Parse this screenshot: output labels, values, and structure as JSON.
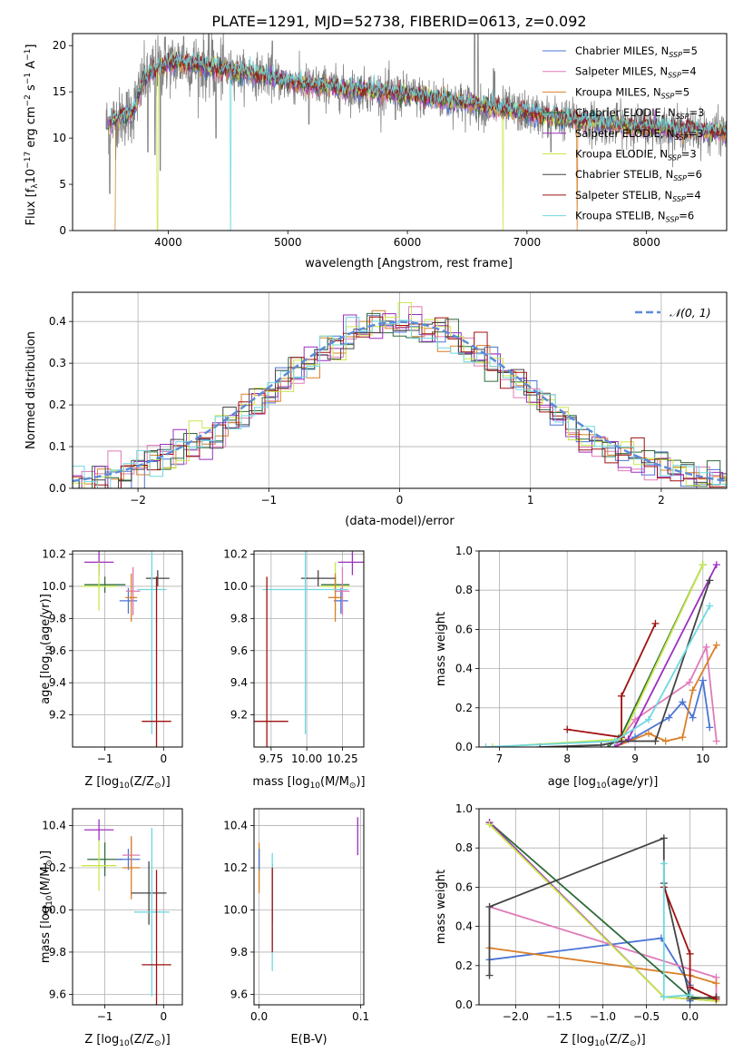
{
  "figure_title": "PLATE=1291, MJD=52738, FIBERID=0613, z=0.092",
  "colors": {
    "Chabrier MILES": "#4a74d6",
    "Salpeter MILES": "#e07ab8",
    "Kroupa MILES": "#d9802a",
    "Chabrier ELODIE": "#2e6b3a",
    "Salpeter ELODIE": "#9b2fbf",
    "Kroupa ELODIE": "#c8e84a",
    "Chabrier STELIB": "#444444",
    "Salpeter STELIB": "#a01010",
    "Kroupa STELIB": "#6fd8e0",
    "data": "#808080",
    "normal": "#5b8ad8"
  },
  "legend_entries": [
    {
      "name": "Chabrier MILES",
      "nssp": "5"
    },
    {
      "name": "Salpeter MILES",
      "nssp": "4"
    },
    {
      "name": "Kroupa MILES",
      "nssp": "5"
    },
    {
      "name": "Chabrier ELODIE",
      "nssp": "3"
    },
    {
      "name": "Salpeter ELODIE",
      "nssp": "3"
    },
    {
      "name": "Kroupa ELODIE",
      "nssp": "3"
    },
    {
      "name": "Chabrier STELIB",
      "nssp": "6"
    },
    {
      "name": "Salpeter STELIB",
      "nssp": "4"
    },
    {
      "name": "Kroupa STELIB",
      "nssp": "6"
    }
  ],
  "chart_data": [
    {
      "id": "spectrum",
      "type": "line",
      "title": "PLATE=1291, MJD=52738, FIBERID=0613, z=0.092",
      "xlabel": "wavelength [Angstrom, rest frame]",
      "ylabel_parts": [
        "Flux [f",
        "λ",
        "10",
        "−17",
        " erg cm",
        "−2",
        " s",
        "−1",
        " A",
        "−1",
        "]"
      ],
      "xlim": [
        3200,
        8670
      ],
      "ylim": [
        0,
        21.3
      ],
      "xticks": [
        4000,
        5000,
        6000,
        7000,
        8000
      ],
      "yticks": [
        0,
        5,
        10,
        15,
        20
      ],
      "legend_loc": "upper right",
      "continuum": [
        [
          3480,
          11.5
        ],
        [
          3600,
          12.2
        ],
        [
          3700,
          12.8
        ],
        [
          3800,
          16.5
        ],
        [
          3900,
          17.5
        ],
        [
          4000,
          18.0
        ],
        [
          4100,
          18.2
        ],
        [
          4200,
          18.0
        ],
        [
          4400,
          17.5
        ],
        [
          4600,
          17.1
        ],
        [
          4800,
          16.8
        ],
        [
          5000,
          16.0
        ],
        [
          5200,
          15.7
        ],
        [
          5500,
          15.3
        ],
        [
          5800,
          15.0
        ],
        [
          6100,
          14.5
        ],
        [
          6400,
          14.0
        ],
        [
          6700,
          13.3
        ],
        [
          7000,
          12.7
        ],
        [
          7300,
          12.1
        ],
        [
          7600,
          11.6
        ],
        [
          7900,
          11.3
        ],
        [
          8200,
          11.0
        ],
        [
          8500,
          10.7
        ],
        [
          8670,
          10.6
        ]
      ],
      "data_spikes": [
        [
          3970,
          20.9
        ],
        [
          4130,
          21.0
        ],
        [
          4370,
          20.6
        ],
        [
          4870,
          20.5
        ],
        [
          6563,
          23.0
        ],
        [
          6590,
          23.0
        ],
        [
          6720,
          17.5
        ],
        [
          6730,
          17.2
        ]
      ],
      "data_dips": [
        [
          3510,
          4.0
        ],
        [
          3830,
          8.5
        ],
        [
          3890,
          8.2
        ],
        [
          3934,
          6.5
        ],
        [
          4400,
          10.0
        ],
        [
          5176,
          11.5
        ],
        [
          5900,
          12.0
        ],
        [
          7200,
          8.5
        ]
      ],
      "model_drops": [
        {
          "model": "Kroupa STELIB",
          "x": 4520
        },
        {
          "model": "Kroupa ELODIE",
          "x": 3910
        },
        {
          "model": "Kroupa ELODIE",
          "x": 6800
        },
        {
          "model": "Kroupa MILES",
          "x": 7420
        },
        {
          "model": "Kroupa MILES",
          "x": 3520
        }
      ]
    },
    {
      "id": "residuals",
      "type": "histogram",
      "xlabel": "(data-model)/error",
      "ylabel": "Normed distribution",
      "xlim": [
        -2.5,
        2.5
      ],
      "ylim": [
        0,
        0.47
      ],
      "xticks": [
        -2,
        -1,
        0,
        1,
        2
      ],
      "yticks": [
        0.0,
        0.1,
        0.2,
        0.3,
        0.4
      ],
      "legend_label": "𝒩(0, 1)",
      "legend_loc": "upper right",
      "bin_width": 0.1
    },
    {
      "id": "age_vs_Z",
      "type": "errorbar",
      "xlabel_parts": [
        "Z [log",
        "10",
        "(Z/Z",
        "⊙",
        ")]"
      ],
      "ylabel_parts": [
        "age  [log",
        "10",
        "(age/yr)]"
      ],
      "xlim": [
        -1.55,
        0.32
      ],
      "ylim": [
        9.0,
        10.22
      ],
      "xticks": [
        -1,
        0
      ],
      "yticks": [
        9.2,
        9.4,
        9.6,
        9.8,
        10.0,
        10.2
      ],
      "points": [
        {
          "model": "Salpeter ELODIE",
          "x": -1.1,
          "xerr": 0.25,
          "y": 10.15,
          "yerr": 0.08
        },
        {
          "model": "Chabrier ELODIE",
          "x": -1.0,
          "xerr": 0.35,
          "y": 10.01,
          "yerr": 0.05
        },
        {
          "model": "Kroupa ELODIE",
          "x": -1.1,
          "xerr": 0.3,
          "y": 10.0,
          "yerr": 0.15
        },
        {
          "model": "Chabrier MILES",
          "x": -0.6,
          "xerr": 0.15,
          "y": 9.91,
          "yerr": 0.08
        },
        {
          "model": "Salpeter MILES",
          "x": -0.52,
          "xerr": 0.12,
          "y": 9.97,
          "yerr": 0.15
        },
        {
          "model": "Kroupa MILES",
          "x": -0.55,
          "xerr": 0.1,
          "y": 9.93,
          "yerr": 0.15
        },
        {
          "model": "Chabrier STELIB",
          "x": -0.1,
          "xerr": 0.2,
          "y": 10.05,
          "yerr": 0.05
        },
        {
          "model": "Kroupa STELIB",
          "x": -0.2,
          "xerr": 0.25,
          "y": 9.98,
          "yerr": 0.9
        },
        {
          "model": "Salpeter STELIB",
          "x": -0.12,
          "xerr": 0.25,
          "y": 9.16,
          "yerr": 0.9
        }
      ]
    },
    {
      "id": "age_vs_mass",
      "type": "errorbar",
      "xlabel_parts": [
        "mass [log",
        "10",
        "(M/M",
        "⊙",
        ")]"
      ],
      "xlim": [
        9.63,
        10.4
      ],
      "ylim": [
        9.0,
        10.22
      ],
      "xticks": [
        9.75,
        10.0,
        10.25
      ],
      "xticklabels": [
        "9.75",
        "10.00",
        "10.25"
      ],
      "yticks": [
        9.2,
        9.4,
        9.6,
        9.8,
        10.0,
        10.2
      ],
      "points": [
        {
          "model": "Salpeter ELODIE",
          "x": 10.32,
          "xerr": 0.1,
          "y": 10.15,
          "yerr": 0.08
        },
        {
          "model": "Chabrier ELODIE",
          "x": 10.2,
          "xerr": 0.1,
          "y": 10.01,
          "yerr": 0.05
        },
        {
          "model": "Kroupa ELODIE",
          "x": 10.2,
          "xerr": 0.1,
          "y": 10.0,
          "yerr": 0.15
        },
        {
          "model": "Chabrier MILES",
          "x": 10.24,
          "xerr": 0.05,
          "y": 9.91,
          "yerr": 0.08
        },
        {
          "model": "Salpeter MILES",
          "x": 10.25,
          "xerr": 0.05,
          "y": 9.97,
          "yerr": 0.15
        },
        {
          "model": "Kroupa MILES",
          "x": 10.2,
          "xerr": 0.05,
          "y": 9.93,
          "yerr": 0.15
        },
        {
          "model": "Chabrier STELIB",
          "x": 10.08,
          "xerr": 0.12,
          "y": 10.05,
          "yerr": 0.05
        },
        {
          "model": "Kroupa STELIB",
          "x": 9.99,
          "xerr": 0.3,
          "y": 9.98,
          "yerr": 0.9
        },
        {
          "model": "Salpeter STELIB",
          "x": 9.72,
          "xerr": 0.15,
          "y": 9.16,
          "yerr": 0.9
        }
      ]
    },
    {
      "id": "weight_vs_age",
      "type": "line",
      "xlabel_parts": [
        "age  [log",
        "10",
        "(age/yr)]"
      ],
      "ylabel": "mass weight",
      "xlim": [
        6.7,
        10.35
      ],
      "ylim": [
        0,
        1.0
      ],
      "xticks": [
        7,
        8,
        9,
        10
      ],
      "yticks": [
        0.0,
        0.2,
        0.4,
        0.6,
        0.8,
        1.0
      ],
      "series": [
        {
          "model": "Chabrier MILES",
          "x": [
            8.7,
            9.0,
            9.5,
            9.7,
            9.85,
            10.0,
            10.1
          ],
          "y": [
            0.0,
            0.05,
            0.15,
            0.23,
            0.15,
            0.34,
            0.1
          ]
        },
        {
          "model": "Salpeter MILES",
          "x": [
            8.7,
            9.0,
            9.8,
            10.05,
            10.2
          ],
          "y": [
            0.0,
            0.14,
            0.33,
            0.51,
            0.03
          ]
        },
        {
          "model": "Kroupa MILES",
          "x": [
            8.7,
            9.2,
            9.45,
            9.7,
            9.85,
            10.2
          ],
          "y": [
            0.0,
            0.07,
            0.03,
            0.05,
            0.29,
            0.52
          ]
        },
        {
          "model": "Chabrier ELODIE",
          "x": [
            8.6,
            8.8,
            10.0
          ],
          "y": [
            0.0,
            0.06,
            0.93
          ]
        },
        {
          "model": "Salpeter ELODIE",
          "x": [
            8.7,
            8.9,
            10.2
          ],
          "y": [
            0.0,
            0.04,
            0.93
          ]
        },
        {
          "model": "Kroupa ELODIE",
          "x": [
            6.9,
            8.8,
            10.0
          ],
          "y": [
            0.0,
            0.04,
            0.93
          ]
        },
        {
          "model": "Chabrier STELIB",
          "x": [
            7.6,
            8.5,
            8.8,
            9.3,
            10.1
          ],
          "y": [
            0.0,
            0.01,
            0.03,
            0.03,
            0.85
          ]
        },
        {
          "model": "Salpeter STELIB",
          "x": [
            8.0,
            8.8,
            8.8,
            9.3
          ],
          "y": [
            0.09,
            0.05,
            0.26,
            0.63
          ]
        },
        {
          "model": "Kroupa STELIB",
          "x": [
            6.8,
            8.7,
            9.2,
            10.1
          ],
          "y": [
            0.0,
            0.03,
            0.14,
            0.72
          ]
        }
      ]
    },
    {
      "id": "mass_vs_Z",
      "type": "errorbar",
      "xlabel_parts": [
        "Z [log",
        "10",
        "(Z/Z",
        "⊙",
        ")]"
      ],
      "ylabel_parts": [
        "mass [log",
        "10",
        "(M/M",
        "⊙",
        ")]"
      ],
      "xlim": [
        -1.55,
        0.32
      ],
      "ylim": [
        9.55,
        10.48
      ],
      "xticks": [
        -1,
        0
      ],
      "yticks": [
        9.6,
        9.8,
        10.0,
        10.2,
        10.4
      ],
      "points": [
        {
          "model": "Salpeter ELODIE",
          "x": -1.1,
          "xerr": 0.25,
          "y": 10.38,
          "yerr": 0.05
        },
        {
          "model": "Chabrier ELODIE",
          "x": -1.0,
          "xerr": 0.3,
          "y": 10.24,
          "yerr": 0.08
        },
        {
          "model": "Kroupa ELODIE",
          "x": -1.1,
          "xerr": 0.3,
          "y": 10.21,
          "yerr": 0.12
        },
        {
          "model": "Chabrier MILES",
          "x": -0.6,
          "xerr": 0.2,
          "y": 10.24,
          "yerr": 0.05
        },
        {
          "model": "Salpeter MILES",
          "x": -0.55,
          "xerr": 0.15,
          "y": 10.26,
          "yerr": 0.08
        },
        {
          "model": "Kroupa MILES",
          "x": -0.55,
          "xerr": 0.15,
          "y": 10.2,
          "yerr": 0.15
        },
        {
          "model": "Chabrier STELIB",
          "x": -0.25,
          "xerr": 0.3,
          "y": 10.08,
          "yerr": 0.15
        },
        {
          "model": "Kroupa STELIB",
          "x": -0.2,
          "xerr": 0.3,
          "y": 9.99,
          "yerr": 0.4
        },
        {
          "model": "Salpeter STELIB",
          "x": -0.12,
          "xerr": 0.25,
          "y": 9.74,
          "yerr": 0.45
        }
      ]
    },
    {
      "id": "mass_vs_EBV",
      "type": "errorbar",
      "xlabel": "E(B-V)",
      "xlim": [
        -0.005,
        0.103
      ],
      "ylim": [
        9.55,
        10.48
      ],
      "xticks": [
        0.0,
        0.1
      ],
      "yticks": [
        9.6,
        9.8,
        10.0,
        10.2,
        10.4
      ],
      "points": [
        {
          "model": "Salpeter ELODIE",
          "x": 0.097,
          "y": 10.35,
          "yerr": 0.09
        },
        {
          "model": "Kroupa ELODIE",
          "x": 0.0,
          "y": 10.2,
          "yerr": 0.1
        },
        {
          "model": "Kroupa MILES",
          "x": 0.0,
          "y": 10.2,
          "yerr": 0.12
        },
        {
          "model": "Chabrier MILES",
          "x": 0.0,
          "y": 10.24,
          "yerr": 0.05
        },
        {
          "model": "Chabrier STELIB",
          "x": 0.013,
          "y": 10.08,
          "yerr": 0.14
        },
        {
          "model": "Kroupa STELIB",
          "x": 0.013,
          "y": 9.99,
          "yerr": 0.28
        },
        {
          "model": "Salpeter STELIB",
          "x": 0.013,
          "y": 10.0,
          "yerr": 0.2
        }
      ]
    },
    {
      "id": "weight_vs_Z",
      "type": "line",
      "xlabel_parts": [
        "Z [log",
        "10",
        "(Z/Z",
        "⊙",
        ")]"
      ],
      "ylabel": "mass weight",
      "xlim": [
        -2.42,
        0.42
      ],
      "ylim": [
        0,
        1.0
      ],
      "xticks": [
        -2.0,
        -1.5,
        -1.0,
        -0.5,
        0.0
      ],
      "xticklabels": [
        "−2.0",
        "−1.5",
        "−1.0",
        "−0.5",
        "0.0"
      ],
      "yticks": [
        0.0,
        0.2,
        0.4,
        0.6,
        0.8,
        1.0
      ],
      "series": [
        {
          "model": "Chabrier MILES",
          "x": [
            -2.3,
            -0.33,
            0.0,
            0.0
          ],
          "y": [
            0.23,
            0.34,
            0.1,
            0.02
          ]
        },
        {
          "model": "Salpeter MILES",
          "x": [
            -2.3,
            0.3,
            0.3
          ],
          "y": [
            0.5,
            0.14,
            0.03
          ]
        },
        {
          "model": "Kroupa MILES",
          "x": [
            -2.3,
            0.0,
            0.3
          ],
          "y": [
            0.29,
            0.15,
            0.11
          ]
        },
        {
          "model": "Chabrier ELODIE",
          "x": [
            -2.3,
            0.0,
            0.3
          ],
          "y": [
            0.93,
            0.04,
            0.03
          ]
        },
        {
          "model": "Salpeter ELODIE",
          "x": [
            -2.3,
            -0.3,
            0.3
          ],
          "y": [
            0.93,
            0.04,
            0.02
          ]
        },
        {
          "model": "Kroupa ELODIE",
          "x": [
            -2.3,
            -0.3,
            0.3
          ],
          "y": [
            0.92,
            0.04,
            0.02
          ]
        },
        {
          "model": "Chabrier STELIB",
          "x": [
            -2.3,
            -2.3,
            -0.3,
            -0.3,
            0.0,
            0.3
          ],
          "y": [
            0.15,
            0.5,
            0.85,
            0.62,
            0.03,
            0.04
          ]
        },
        {
          "model": "Salpeter STELIB",
          "x": [
            -0.3,
            0.0,
            0.0,
            0.3
          ],
          "y": [
            0.6,
            0.26,
            0.09,
            0.03
          ]
        },
        {
          "model": "Kroupa STELIB",
          "x": [
            -0.3,
            -0.3,
            0.0
          ],
          "y": [
            0.72,
            0.04,
            0.05
          ]
        }
      ]
    }
  ]
}
